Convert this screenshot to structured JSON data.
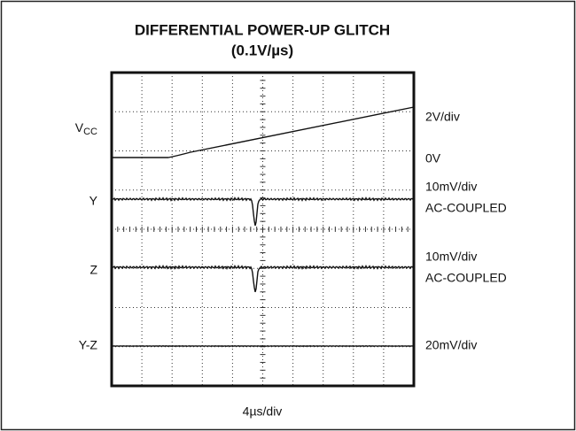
{
  "title": "DIFFERENTIAL POWER-UP GLITCH",
  "subtitle": "(0.1V/µs)",
  "traces": [
    {
      "label": {
        "main": "V",
        "sub": "CC"
      },
      "scale": [
        "2V/div"
      ],
      "zero": "0V"
    },
    {
      "label": {
        "main": "Y"
      },
      "scale": [
        "10mV/div",
        "AC-COUPLED"
      ]
    },
    {
      "label": {
        "main": "Z"
      },
      "scale": [
        "10mV/div",
        "AC-COUPLED"
      ]
    },
    {
      "label": {
        "main": "Y-Z"
      },
      "scale": [
        "20mV/div"
      ]
    }
  ],
  "timebase": "4µs/div"
}
